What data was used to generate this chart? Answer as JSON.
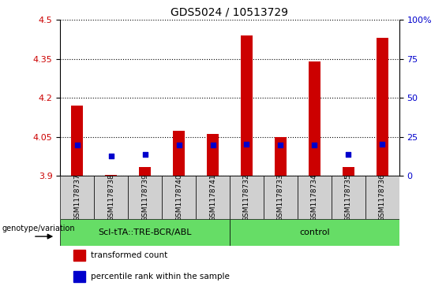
{
  "title": "GDS5024 / 10513729",
  "samples": [
    "GSM1178737",
    "GSM1178738",
    "GSM1178739",
    "GSM1178740",
    "GSM1178741",
    "GSM1178732",
    "GSM1178733",
    "GSM1178734",
    "GSM1178735",
    "GSM1178736"
  ],
  "transformed_count": [
    4.17,
    3.905,
    3.935,
    4.075,
    4.06,
    4.44,
    4.05,
    4.34,
    3.935,
    4.43
  ],
  "baseline": 3.9,
  "blue_y_positions": [
    4.018,
    3.978,
    3.983,
    4.018,
    4.018,
    4.022,
    4.018,
    4.018,
    3.983,
    4.022
  ],
  "ylim_left": [
    3.9,
    4.5
  ],
  "ylim_right": [
    0,
    100
  ],
  "yticks_left": [
    3.9,
    4.05,
    4.2,
    4.35,
    4.5
  ],
  "yticks_right": [
    0,
    25,
    50,
    75,
    100
  ],
  "ytick_labels_right": [
    "0",
    "25",
    "50",
    "75",
    "100%"
  ],
  "bar_color": "#cc0000",
  "blue_marker_color": "#0000cc",
  "grid_color": "#000000",
  "xtick_bg_color": "#d0d0d0",
  "group1_label": "Scl-tTA::TRE-BCR/ABL",
  "group2_label": "control",
  "group_bg_color": "#66dd66",
  "legend_red_label": "transformed count",
  "legend_blue_label": "percentile rank within the sample",
  "ylabel_left_color": "#cc0000",
  "ylabel_right_color": "#0000cc",
  "bar_width": 0.35,
  "plot_bg_color": "#ffffff",
  "title_fontsize": 10,
  "ytick_fontsize": 8,
  "xlabel_fontsize": 6.5,
  "geno_fontsize": 8,
  "legend_fontsize": 7.5,
  "geno_label_fontsize": 7,
  "blue_sq_size": 25
}
